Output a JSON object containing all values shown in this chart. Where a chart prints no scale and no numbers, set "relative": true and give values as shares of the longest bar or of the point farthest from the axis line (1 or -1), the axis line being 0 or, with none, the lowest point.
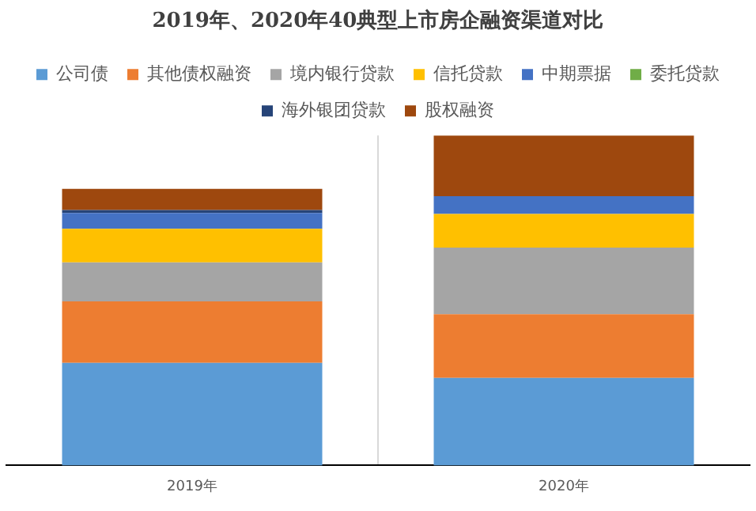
{
  "chart_data": {
    "type": "bar",
    "title": "2019年、2020年40典型上市房企融资渠道对比",
    "categories": [
      "2019年",
      "2020年"
    ],
    "stacked": true,
    "relative": true,
    "legend": "top",
    "grid": "x",
    "series": [
      {
        "name": "公司债",
        "color": "#5b9bd5",
        "values": [
          0.311,
          0.265
        ]
      },
      {
        "name": "其他债权融资",
        "color": "#ed7d31",
        "values": [
          0.186,
          0.193
        ]
      },
      {
        "name": "境内银行贷款",
        "color": "#a5a5a5",
        "values": [
          0.118,
          0.202
        ]
      },
      {
        "name": "信托贷款",
        "color": "#ffc000",
        "values": [
          0.102,
          0.102
        ]
      },
      {
        "name": "中期票据",
        "color": "#4472c4",
        "values": [
          0.048,
          0.054
        ]
      },
      {
        "name": "委托贷款",
        "color": "#70ad47",
        "values": [
          0,
          0
        ]
      },
      {
        "name": "海外银团贷款",
        "color": "#264478",
        "values": [
          0.009,
          0
        ]
      },
      {
        "name": "股权融资",
        "color": "#9e480e",
        "values": [
          0.064,
          0.184
        ]
      }
    ]
  }
}
